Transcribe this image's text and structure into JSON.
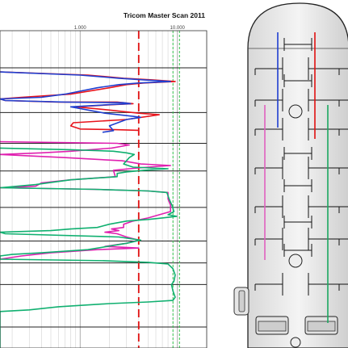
{
  "chart_data": {
    "type": "line",
    "title": "Tricom Master Scan 2011",
    "xlabel": "",
    "ylabel": "",
    "x_scale": "log",
    "xlim": [
      150,
      20000
    ],
    "x_tick_labels": [
      {
        "value": 1000,
        "label": "1.000"
      },
      {
        "value": 10000,
        "label": "10.000"
      }
    ],
    "ylim": [
      0,
      100
    ],
    "reference_lines": [
      {
        "x": 4000,
        "color": "#e01010",
        "style": "long-dash"
      },
      {
        "x": 9000,
        "color": "#2fc04a",
        "style": "short-dash"
      },
      {
        "x": 10500,
        "color": "#2fc04a",
        "style": "short-dash"
      }
    ],
    "series": [
      {
        "color": "#e8141c",
        "points": [
          [
            150,
            13
          ],
          [
            1200,
            14
          ],
          [
            2800,
            15
          ],
          [
            5500,
            15.5
          ],
          [
            9500,
            16
          ],
          [
            4500,
            16.5
          ],
          [
            3000,
            17
          ],
          [
            2000,
            18
          ],
          [
            800,
            20
          ],
          [
            250,
            21
          ],
          [
            150,
            21.5
          ],
          [
            170,
            22
          ],
          [
            600,
            22.5
          ],
          [
            2400,
            22.5
          ],
          [
            3500,
            23
          ],
          [
            2200,
            23.3
          ],
          [
            900,
            24
          ],
          [
            2000,
            25
          ],
          [
            4000,
            26
          ],
          [
            6500,
            26.5
          ],
          [
            3000,
            28
          ],
          [
            850,
            29
          ],
          [
            800,
            30
          ],
          [
            1000,
            31
          ],
          [
            2300,
            31.2
          ],
          [
            4000,
            31.4
          ]
        ]
      },
      {
        "color": "#1f3fd0",
        "points": [
          [
            150,
            13
          ],
          [
            1000,
            14
          ],
          [
            2500,
            15
          ],
          [
            4500,
            15.5
          ],
          [
            8500,
            16
          ],
          [
            4000,
            16.5
          ],
          [
            2500,
            17
          ],
          [
            1500,
            18
          ],
          [
            700,
            20
          ],
          [
            400,
            21
          ],
          [
            150,
            21.5
          ],
          [
            170,
            22
          ],
          [
            700,
            22.5
          ],
          [
            2800,
            22.7
          ],
          [
            3300,
            23
          ],
          [
            2000,
            23.3
          ],
          [
            800,
            24
          ],
          [
            1800,
            26
          ],
          [
            3500,
            27
          ],
          [
            4200,
            27.3
          ],
          [
            3000,
            28
          ],
          [
            2000,
            30
          ],
          [
            2200,
            31.5
          ],
          [
            1700,
            32
          ]
        ]
      },
      {
        "color": "#e020b0",
        "points": [
          [
            150,
            35
          ],
          [
            2400,
            35.5
          ],
          [
            3200,
            36
          ],
          [
            2100,
            37
          ],
          [
            800,
            38
          ],
          [
            400,
            38.5
          ],
          [
            150,
            39
          ],
          [
            700,
            40
          ],
          [
            2700,
            41
          ],
          [
            4200,
            42
          ],
          [
            8500,
            42.5
          ],
          [
            5000,
            43
          ],
          [
            3200,
            43.5
          ],
          [
            2200,
            44
          ],
          [
            2300,
            46
          ],
          [
            800,
            47
          ],
          [
            400,
            48
          ],
          [
            350,
            49
          ],
          [
            150,
            49.5
          ],
          [
            1400,
            50
          ],
          [
            5000,
            50.5
          ],
          [
            8000,
            51
          ],
          [
            8000,
            53
          ],
          [
            8500,
            55
          ],
          [
            8500,
            57
          ],
          [
            5000,
            59
          ],
          [
            3500,
            60
          ],
          [
            2800,
            61
          ],
          [
            2800,
            62
          ],
          [
            2100,
            62.5
          ],
          [
            2500,
            63
          ],
          [
            1800,
            63.5
          ],
          [
            2400,
            64
          ],
          [
            3000,
            65
          ],
          [
            4000,
            66
          ],
          [
            3000,
            67
          ],
          [
            1800,
            68
          ],
          [
            4000,
            68.5
          ],
          [
            1500,
            69
          ],
          [
            500,
            70
          ],
          [
            250,
            71
          ],
          [
            150,
            72
          ]
        ]
      },
      {
        "color": "#10b070",
        "points": [
          [
            150,
            37
          ],
          [
            800,
            37.5
          ],
          [
            2200,
            38
          ],
          [
            3000,
            38.5
          ],
          [
            3600,
            39
          ],
          [
            3200,
            40
          ],
          [
            2800,
            42
          ],
          [
            3500,
            43
          ],
          [
            8000,
            43.5
          ],
          [
            4500,
            44
          ],
          [
            3000,
            44.5
          ],
          [
            2400,
            45
          ],
          [
            2400,
            46
          ],
          [
            800,
            47
          ],
          [
            350,
            48.5
          ],
          [
            150,
            49.5
          ],
          [
            1400,
            50
          ],
          [
            5000,
            50.5
          ],
          [
            7800,
            51
          ],
          [
            8200,
            53
          ],
          [
            8800,
            55
          ],
          [
            9200,
            57
          ],
          [
            8000,
            58
          ],
          [
            9800,
            58.5
          ],
          [
            7000,
            59
          ],
          [
            5000,
            59.5
          ],
          [
            3000,
            60
          ],
          [
            2000,
            61
          ],
          [
            1500,
            62
          ],
          [
            800,
            62.5
          ],
          [
            500,
            63
          ],
          [
            150,
            63.5
          ],
          [
            170,
            64
          ],
          [
            2500,
            65
          ],
          [
            4200,
            66
          ],
          [
            3000,
            67
          ],
          [
            1200,
            69
          ],
          [
            400,
            70
          ],
          [
            200,
            70.5
          ],
          [
            150,
            71
          ],
          [
            150,
            72
          ],
          [
            1800,
            72.5
          ],
          [
            5000,
            73
          ],
          [
            8000,
            73.5
          ],
          [
            9000,
            75
          ],
          [
            9500,
            77
          ],
          [
            9200,
            79
          ],
          [
            8700,
            80
          ],
          [
            9000,
            82
          ],
          [
            9500,
            84
          ],
          [
            9000,
            85
          ],
          [
            5000,
            85.5
          ],
          [
            2000,
            86
          ],
          [
            600,
            87
          ],
          [
            300,
            88
          ],
          [
            150,
            88.5
          ],
          [
            150,
            100
          ]
        ]
      }
    ]
  },
  "vessel": {
    "probe_lines": [
      {
        "color": "#1f3fd0",
        "top": 40,
        "bottom": 158
      },
      {
        "color": "#e01010",
        "top": 40,
        "bottom": 172
      },
      {
        "color": "#e060c0",
        "top": 130,
        "bottom": 322
      },
      {
        "color": "#1ca860",
        "top": 130,
        "bottom": 400
      }
    ]
  }
}
